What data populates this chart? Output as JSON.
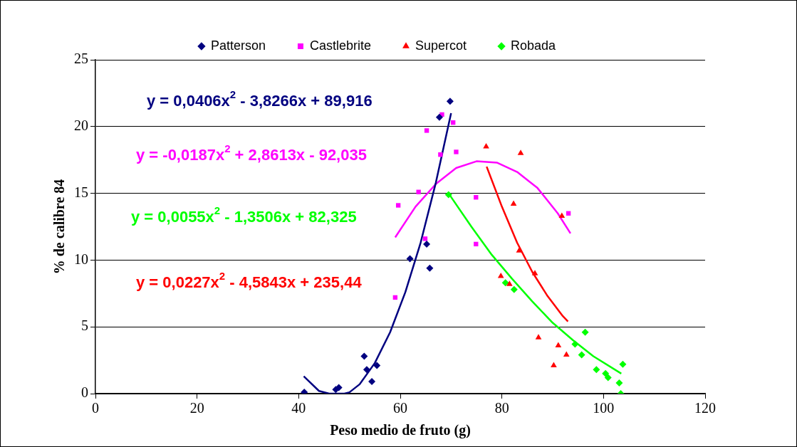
{
  "chart_data": {
    "type": "scatter",
    "xlabel": "Peso medio de fruto (g)",
    "ylabel": "% de calibre 84",
    "xlim": [
      0,
      120
    ],
    "xticks": [
      0,
      20,
      40,
      60,
      80,
      100,
      120
    ],
    "ylim": [
      0,
      25
    ],
    "yticks": [
      0,
      5,
      10,
      15,
      20,
      25
    ],
    "grid": "y",
    "legend": "top",
    "series": [
      {
        "name": "Patterson",
        "color": "#000080",
        "marker": "diamond",
        "x": [
          41.1,
          47.3,
          47.9,
          52.9,
          53.4,
          54.4,
          55.4,
          61.9,
          65.2,
          65.8,
          67.7,
          69.8
        ],
        "values": [
          0.1,
          0.3,
          0.45,
          2.8,
          1.8,
          0.9,
          2.1,
          10.1,
          11.2,
          9.4,
          20.7,
          21.9
        ]
      },
      {
        "name": "Castlebrite",
        "color": "#ff00ff",
        "marker": "square",
        "x": [
          59.0,
          59.6,
          63.6,
          64.9,
          65.2,
          67.9,
          68.2,
          70.4,
          71.0,
          74.9,
          74.9,
          93.1
        ],
        "values": [
          7.2,
          14.1,
          15.1,
          11.6,
          19.7,
          17.9,
          20.9,
          20.3,
          18.1,
          14.7,
          11.2,
          13.5
        ]
      },
      {
        "name": "Supercot",
        "color": "#ff0000",
        "marker": "triangle",
        "x": [
          76.9,
          79.8,
          81.5,
          82.3,
          83.4,
          83.7,
          86.5,
          87.2,
          90.2,
          91.1,
          91.8,
          92.7
        ],
        "values": [
          18.5,
          8.8,
          8.2,
          14.2,
          10.7,
          18.0,
          9.0,
          4.2,
          2.1,
          3.6,
          13.3,
          2.9
        ]
      },
      {
        "name": "Robada",
        "color": "#00ff00",
        "marker": "diamond",
        "x": [
          69.5,
          80.7,
          82.4,
          94.4,
          95.7,
          96.4,
          98.6,
          100.4,
          100.9,
          103.1,
          103.4,
          103.8
        ],
        "values": [
          14.9,
          8.3,
          7.8,
          3.7,
          2.9,
          4.6,
          1.8,
          1.5,
          1.2,
          0.8,
          0.0,
          2.2
        ]
      },
      {
        "type": "line",
        "color": "#000080",
        "marker": "none",
        "x": [
          41,
          44,
          46,
          49,
          50,
          52,
          55,
          58,
          61,
          64,
          67,
          70
        ],
        "values": [
          1.3,
          0.2,
          0,
          0,
          0.1,
          0.7,
          2.3,
          4.6,
          7.6,
          11.3,
          15.8,
          21.0
        ]
      },
      {
        "type": "line",
        "color": "#ff00ff",
        "marker": "none",
        "x": [
          59,
          63,
          67,
          71,
          75,
          79,
          83,
          87,
          91,
          93.5
        ],
        "values": [
          11.7,
          14.0,
          15.7,
          16.9,
          17.4,
          17.3,
          16.6,
          15.4,
          13.5,
          12.0
        ]
      },
      {
        "type": "line",
        "color": "#ff0000",
        "marker": "none",
        "x": [
          77,
          80,
          83,
          86,
          89,
          92,
          93
        ],
        "values": [
          17.0,
          14.0,
          11.3,
          9.1,
          7.3,
          5.8,
          5.4
        ]
      },
      {
        "type": "line",
        "color": "#00ff00",
        "marker": "none",
        "x": [
          69.5,
          74,
          78,
          82,
          86,
          90,
          94,
          98,
          103.5
        ],
        "values": [
          15.0,
          12.5,
          10.4,
          8.6,
          6.9,
          5.3,
          4.0,
          2.8,
          1.5
        ]
      }
    ],
    "annotations": [
      "y = 0,0406x$^{2}$ - 3,8266x + 89,916",
      "y = -0,0187x$^{2}$ + 2,8613x - 92,035",
      "y = 0,0227x$^{2}$ - 4,5843x + 235,44",
      "y = 0,0055x$^{2}$ - 1,3506x + 82,325"
    ]
  }
}
